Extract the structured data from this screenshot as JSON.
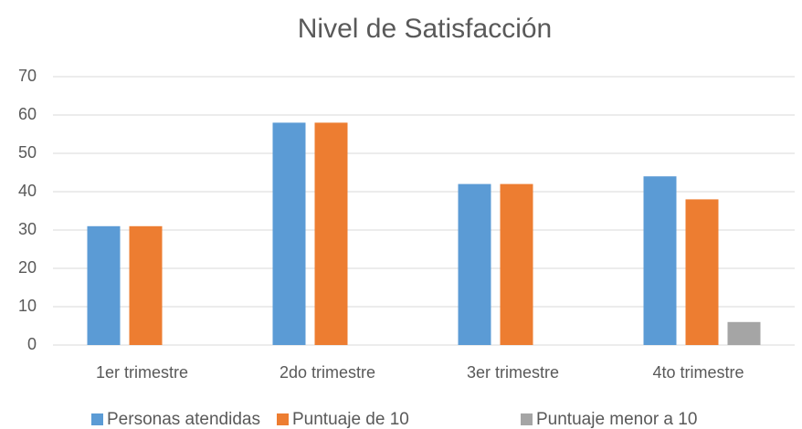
{
  "chart_data": {
    "type": "bar",
    "title": "Nivel de Satisfacción",
    "categories": [
      "1er trimestre",
      "2do trimestre",
      "3er trimestre",
      "4to trimestre"
    ],
    "series": [
      {
        "name": "Personas atendidas",
        "color": "#5b9bd5",
        "values": [
          31,
          58,
          42,
          44
        ]
      },
      {
        "name": "Puntuaje de 10",
        "color": "#ed7d31",
        "values": [
          31,
          58,
          42,
          38
        ]
      },
      {
        "name": "Puntuaje menor a 10",
        "color": "#a5a5a5",
        "values": [
          0,
          0,
          0,
          6
        ]
      }
    ],
    "ylim": [
      0,
      70
    ],
    "yticks": [
      0,
      10,
      20,
      30,
      40,
      50,
      60,
      70
    ],
    "grid": true,
    "legend": "bottom"
  }
}
